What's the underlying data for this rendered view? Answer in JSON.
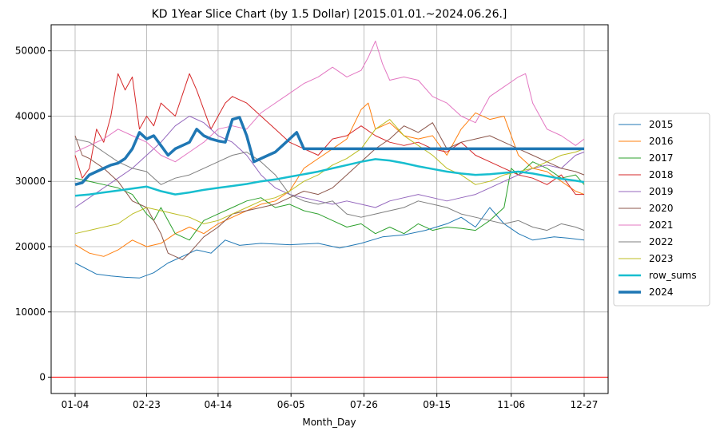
{
  "chart_data": {
    "type": "line",
    "title": "KD 1Year Slice Chart (by 1.5 Dollar) [2015.01.01.~2024.06.26.]",
    "xlabel": "Month_Day",
    "ylabel": "",
    "x_tick_labels": [
      "01-04",
      "02-23",
      "04-14",
      "06-05",
      "07-26",
      "09-15",
      "11-06",
      "12-27"
    ],
    "x_tick_index": [
      0,
      50,
      100,
      151,
      202,
      253,
      305,
      356
    ],
    "x_range": [
      0,
      356
    ],
    "ylim": [
      -2500,
      54000
    ],
    "y_ticks": [
      0,
      10000,
      20000,
      30000,
      40000,
      50000
    ],
    "grid": true,
    "legend_position": "right",
    "reference_line": {
      "y": 0,
      "color": "#ff0000"
    },
    "series": [
      {
        "name": "2015",
        "color": "#1f77b4",
        "width": 1,
        "x": [
          0,
          15,
          25,
          35,
          45,
          55,
          65,
          75,
          85,
          95,
          105,
          115,
          130,
          150,
          170,
          185,
          200,
          215,
          230,
          245,
          260,
          270,
          280,
          290,
          300,
          310,
          320,
          335,
          345,
          356
        ],
        "y": [
          17500,
          15800,
          15500,
          15300,
          15200,
          16000,
          17500,
          18500,
          19500,
          19000,
          21000,
          20200,
          20500,
          20300,
          20500,
          19800,
          20500,
          21500,
          21800,
          22500,
          23500,
          24500,
          23000,
          26000,
          23500,
          22000,
          21000,
          21500,
          21300,
          21000
        ]
      },
      {
        "name": "2016",
        "color": "#ff7f0e",
        "width": 1,
        "x": [
          0,
          10,
          20,
          30,
          40,
          50,
          60,
          70,
          80,
          90,
          100,
          110,
          120,
          130,
          140,
          150,
          160,
          170,
          180,
          190,
          200,
          205,
          210,
          220,
          230,
          240,
          250,
          260,
          270,
          280,
          290,
          300,
          310,
          320,
          330,
          340,
          350,
          356
        ],
        "y": [
          20300,
          19000,
          18500,
          19500,
          21000,
          20000,
          20500,
          22000,
          23000,
          22000,
          23500,
          24500,
          25500,
          26500,
          27000,
          28500,
          32000,
          33500,
          35000,
          36500,
          41000,
          42000,
          38000,
          39000,
          37000,
          36500,
          37000,
          34000,
          38000,
          40500,
          39500,
          40000,
          34000,
          32000,
          31500,
          30000,
          28500,
          28000
        ]
      },
      {
        "name": "2017",
        "color": "#2ca02c",
        "width": 1,
        "x": [
          0,
          10,
          20,
          30,
          40,
          50,
          55,
          60,
          70,
          80,
          90,
          100,
          110,
          120,
          130,
          140,
          150,
          160,
          170,
          180,
          190,
          200,
          210,
          220,
          230,
          240,
          250,
          260,
          270,
          280,
          290,
          300,
          305,
          310,
          320,
          330,
          340,
          350,
          356
        ],
        "y": [
          30500,
          30000,
          29500,
          29000,
          28000,
          25000,
          24000,
          26000,
          22000,
          21000,
          24000,
          25000,
          26000,
          27000,
          27500,
          26000,
          26500,
          25500,
          25000,
          24000,
          23000,
          23500,
          22000,
          23000,
          22000,
          23500,
          22500,
          23000,
          22800,
          22500,
          24000,
          26000,
          32000,
          31000,
          33000,
          32000,
          30500,
          31000,
          29500
        ]
      },
      {
        "name": "2018",
        "color": "#d62728",
        "width": 1,
        "x": [
          0,
          5,
          10,
          15,
          20,
          25,
          30,
          35,
          40,
          45,
          50,
          55,
          60,
          70,
          80,
          85,
          90,
          95,
          100,
          105,
          110,
          120,
          130,
          140,
          150,
          160,
          170,
          180,
          190,
          200,
          210,
          220,
          230,
          240,
          250,
          260,
          270,
          280,
          290,
          300,
          310,
          320,
          330,
          340,
          350,
          356
        ],
        "y": [
          34000,
          30500,
          32000,
          38000,
          36000,
          40000,
          46500,
          44000,
          46000,
          38000,
          40000,
          38500,
          42000,
          40000,
          46500,
          44000,
          41000,
          38000,
          40000,
          42000,
          43000,
          42000,
          40000,
          38000,
          36000,
          35000,
          34000,
          36500,
          37000,
          38500,
          37000,
          36000,
          35500,
          36000,
          35000,
          34500,
          36000,
          34000,
          33000,
          32000,
          31000,
          30500,
          29500,
          31000,
          28000,
          28000
        ]
      },
      {
        "name": "2019",
        "color": "#9467bd",
        "width": 1,
        "x": [
          0,
          10,
          20,
          30,
          40,
          50,
          60,
          70,
          80,
          90,
          100,
          110,
          120,
          130,
          140,
          150,
          160,
          170,
          180,
          190,
          200,
          210,
          220,
          230,
          240,
          250,
          260,
          270,
          280,
          290,
          300,
          310,
          320,
          330,
          340,
          350,
          356
        ],
        "y": [
          26000,
          27500,
          29000,
          30500,
          32000,
          34000,
          36000,
          38500,
          40000,
          39000,
          37000,
          36000,
          34000,
          31000,
          29000,
          28000,
          27500,
          27000,
          26500,
          27000,
          26500,
          26000,
          27000,
          27500,
          28000,
          27500,
          27000,
          27500,
          28000,
          29000,
          30000,
          31000,
          32000,
          32500,
          32000,
          34000,
          34500
        ]
      },
      {
        "name": "2020",
        "color": "#8c564b",
        "width": 1,
        "x": [
          0,
          5,
          10,
          20,
          30,
          40,
          50,
          60,
          65,
          70,
          75,
          80,
          90,
          100,
          110,
          120,
          130,
          140,
          150,
          160,
          170,
          180,
          190,
          200,
          210,
          220,
          230,
          240,
          250,
          260,
          270,
          280,
          290,
          300,
          310,
          320,
          330,
          340,
          350,
          356
        ],
        "y": [
          37000,
          34000,
          33500,
          32000,
          30000,
          27000,
          26000,
          22000,
          19000,
          18500,
          18000,
          19000,
          21500,
          23000,
          25000,
          25500,
          26000,
          26500,
          27500,
          28500,
          28000,
          29000,
          31000,
          33000,
          35000,
          36500,
          38500,
          37500,
          39000,
          35000,
          36000,
          36500,
          37000,
          36000,
          35000,
          34000,
          33000,
          32000,
          31500,
          31000
        ]
      },
      {
        "name": "2021",
        "color": "#e377c2",
        "width": 1,
        "x": [
          0,
          10,
          20,
          30,
          40,
          50,
          60,
          70,
          80,
          90,
          100,
          110,
          120,
          130,
          140,
          150,
          160,
          170,
          180,
          190,
          200,
          205,
          210,
          215,
          220,
          230,
          240,
          250,
          260,
          270,
          280,
          290,
          300,
          310,
          315,
          320,
          330,
          340,
          350,
          356
        ],
        "y": [
          34500,
          35500,
          36500,
          38000,
          37000,
          36000,
          34000,
          33000,
          34500,
          36000,
          38000,
          38500,
          38000,
          40500,
          42000,
          43500,
          45000,
          46000,
          47500,
          46000,
          47000,
          49000,
          51500,
          48000,
          45500,
          46000,
          45500,
          43000,
          42000,
          40000,
          39000,
          43000,
          44500,
          46000,
          46500,
          42000,
          38000,
          37000,
          35500,
          36500
        ]
      },
      {
        "name": "2022",
        "color": "#7f7f7f",
        "width": 1,
        "x": [
          0,
          10,
          20,
          30,
          40,
          50,
          60,
          70,
          80,
          90,
          100,
          110,
          120,
          130,
          140,
          150,
          160,
          170,
          180,
          190,
          200,
          210,
          220,
          230,
          240,
          250,
          260,
          270,
          280,
          290,
          300,
          310,
          320,
          330,
          340,
          350,
          356
        ],
        "y": [
          36500,
          36000,
          34500,
          33000,
          32000,
          31500,
          29500,
          30500,
          31000,
          32000,
          33000,
          34000,
          34500,
          33000,
          31000,
          28000,
          27000,
          26500,
          27000,
          25000,
          24500,
          25000,
          25500,
          26000,
          27000,
          26500,
          26000,
          25000,
          24500,
          24000,
          23500,
          24000,
          23000,
          22500,
          23500,
          23000,
          22500
        ]
      },
      {
        "name": "2023",
        "color": "#bcbd22",
        "width": 1,
        "x": [
          0,
          10,
          20,
          30,
          40,
          50,
          60,
          70,
          80,
          90,
          100,
          110,
          120,
          130,
          140,
          150,
          160,
          170,
          180,
          190,
          200,
          210,
          220,
          230,
          240,
          250,
          260,
          270,
          280,
          290,
          300,
          310,
          320,
          330,
          340,
          350,
          356
        ],
        "y": [
          22000,
          22500,
          23000,
          23500,
          25000,
          26000,
          25500,
          25000,
          24500,
          23500,
          24000,
          25000,
          26000,
          27000,
          27500,
          28500,
          30000,
          31000,
          32500,
          33500,
          35000,
          38000,
          39500,
          37000,
          35500,
          34000,
          32000,
          31000,
          29500,
          30000,
          31000,
          31500,
          32000,
          33000,
          34000,
          34500,
          35000
        ]
      },
      {
        "name": "row_sums",
        "color": "#17becf",
        "width": 2.5,
        "x": [
          0,
          10,
          20,
          30,
          40,
          50,
          60,
          70,
          80,
          90,
          100,
          110,
          120,
          130,
          140,
          150,
          160,
          170,
          180,
          190,
          200,
          210,
          220,
          230,
          240,
          250,
          260,
          270,
          280,
          290,
          300,
          310,
          320,
          330,
          340,
          350,
          356
        ],
        "y": [
          27800,
          28000,
          28300,
          28600,
          28900,
          29200,
          28500,
          28000,
          28300,
          28700,
          29000,
          29300,
          29600,
          30000,
          30300,
          30700,
          31100,
          31500,
          32000,
          32500,
          33000,
          33400,
          33200,
          32800,
          32300,
          31900,
          31500,
          31200,
          31000,
          31100,
          31300,
          31500,
          31200,
          30800,
          30400,
          30100,
          29900
        ]
      },
      {
        "name": "2024",
        "color": "#1f77b4",
        "width": 3.5,
        "x": [
          0,
          5,
          10,
          15,
          20,
          25,
          30,
          35,
          40,
          45,
          50,
          55,
          60,
          65,
          70,
          75,
          80,
          85,
          90,
          95,
          100,
          105,
          110,
          115,
          120,
          125,
          130,
          135,
          140,
          145,
          150,
          155,
          160,
          165,
          170,
          356
        ],
        "y": [
          29500,
          29800,
          31000,
          31500,
          32000,
          32500,
          32800,
          33500,
          35000,
          37500,
          36500,
          37000,
          35500,
          34000,
          35000,
          35500,
          36000,
          38000,
          37000,
          36500,
          36200,
          36000,
          39500,
          39800,
          37000,
          33000,
          33500,
          34000,
          34500,
          35500,
          36500,
          37500,
          35000,
          35000,
          35000,
          35000
        ]
      }
    ]
  }
}
